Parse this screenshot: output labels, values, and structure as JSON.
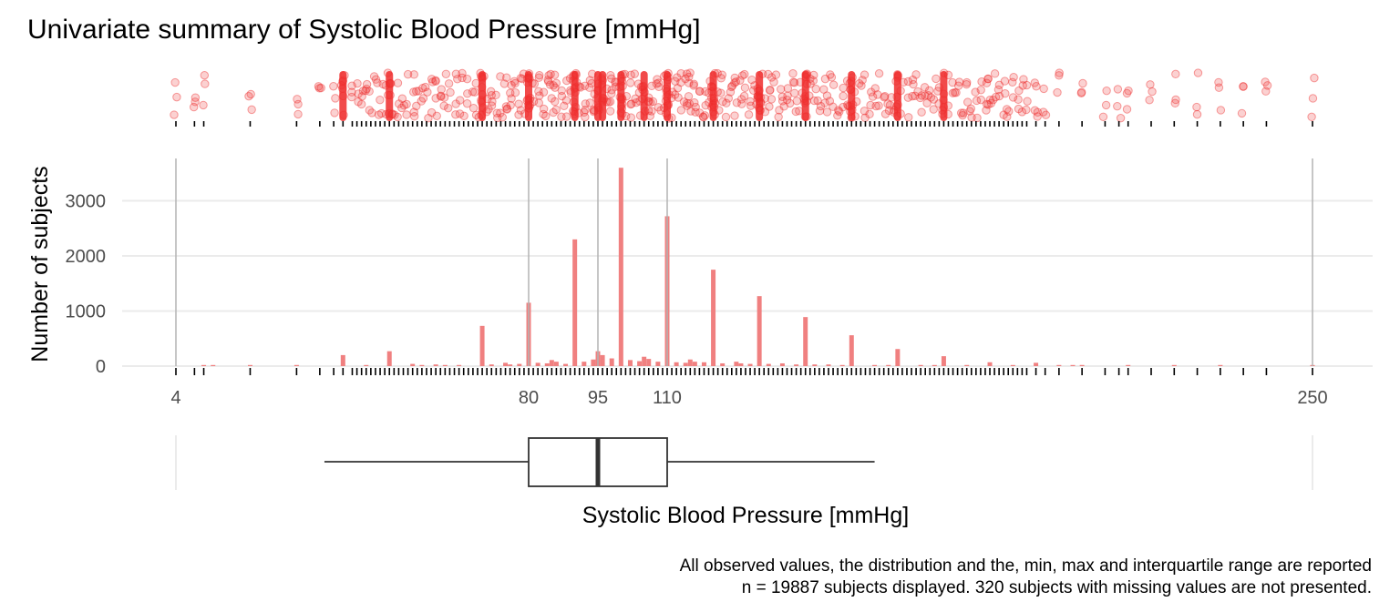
{
  "chart_data": {
    "type": "bar",
    "title": "Univariate summary of Systolic Blood Pressure [mmHg]",
    "xlabel": "Systolic Blood Pressure [mmHg]",
    "ylabel": "Number of subjects",
    "x_ticks": [
      4,
      80,
      95,
      110,
      250
    ],
    "x_tick_labels": [
      "4",
      "80",
      "95",
      "110",
      "250"
    ],
    "y_ticks": [
      0,
      1000,
      2000,
      3000
    ],
    "y_tick_labels": [
      "0",
      "1000",
      "2000",
      "3000"
    ],
    "xlim": [
      4,
      250
    ],
    "ylim": [
      0,
      3800
    ],
    "grid": true,
    "bar_color": "#F08080",
    "point_color": "#EE2C2C",
    "bars": [
      {
        "x": 10,
        "y": 10
      },
      {
        "x": 12,
        "y": 10
      },
      {
        "x": 20,
        "y": 10
      },
      {
        "x": 30,
        "y": 20
      },
      {
        "x": 40,
        "y": 200
      },
      {
        "x": 45,
        "y": 10
      },
      {
        "x": 50,
        "y": 270
      },
      {
        "x": 55,
        "y": 40
      },
      {
        "x": 57,
        "y": 20
      },
      {
        "x": 60,
        "y": 30
      },
      {
        "x": 62,
        "y": 20
      },
      {
        "x": 65,
        "y": 20
      },
      {
        "x": 70,
        "y": 730
      },
      {
        "x": 72,
        "y": 30
      },
      {
        "x": 75,
        "y": 60
      },
      {
        "x": 76,
        "y": 30
      },
      {
        "x": 78,
        "y": 40
      },
      {
        "x": 80,
        "y": 1150
      },
      {
        "x": 82,
        "y": 60
      },
      {
        "x": 84,
        "y": 50
      },
      {
        "x": 85,
        "y": 110
      },
      {
        "x": 86,
        "y": 80
      },
      {
        "x": 88,
        "y": 40
      },
      {
        "x": 90,
        "y": 2300
      },
      {
        "x": 92,
        "y": 80
      },
      {
        "x": 94,
        "y": 120
      },
      {
        "x": 95,
        "y": 270
      },
      {
        "x": 96,
        "y": 200
      },
      {
        "x": 98,
        "y": 140
      },
      {
        "x": 100,
        "y": 3600
      },
      {
        "x": 102,
        "y": 110
      },
      {
        "x": 104,
        "y": 90
      },
      {
        "x": 105,
        "y": 170
      },
      {
        "x": 106,
        "y": 130
      },
      {
        "x": 108,
        "y": 80
      },
      {
        "x": 110,
        "y": 2720
      },
      {
        "x": 112,
        "y": 70
      },
      {
        "x": 114,
        "y": 60
      },
      {
        "x": 115,
        "y": 120
      },
      {
        "x": 116,
        "y": 80
      },
      {
        "x": 118,
        "y": 70
      },
      {
        "x": 120,
        "y": 1750
      },
      {
        "x": 122,
        "y": 50
      },
      {
        "x": 125,
        "y": 80
      },
      {
        "x": 126,
        "y": 50
      },
      {
        "x": 128,
        "y": 40
      },
      {
        "x": 130,
        "y": 1270
      },
      {
        "x": 132,
        "y": 40
      },
      {
        "x": 135,
        "y": 50
      },
      {
        "x": 138,
        "y": 30
      },
      {
        "x": 140,
        "y": 890
      },
      {
        "x": 142,
        "y": 30
      },
      {
        "x": 145,
        "y": 30
      },
      {
        "x": 148,
        "y": 20
      },
      {
        "x": 150,
        "y": 560
      },
      {
        "x": 155,
        "y": 20
      },
      {
        "x": 158,
        "y": 20
      },
      {
        "x": 160,
        "y": 310
      },
      {
        "x": 165,
        "y": 20
      },
      {
        "x": 168,
        "y": 10
      },
      {
        "x": 170,
        "y": 180
      },
      {
        "x": 175,
        "y": 20
      },
      {
        "x": 180,
        "y": 70
      },
      {
        "x": 185,
        "y": 10
      },
      {
        "x": 190,
        "y": 60
      },
      {
        "x": 195,
        "y": 10
      },
      {
        "x": 198,
        "y": 10
      },
      {
        "x": 200,
        "y": 20
      },
      {
        "x": 210,
        "y": 10
      },
      {
        "x": 220,
        "y": 10
      },
      {
        "x": 230,
        "y": 10
      },
      {
        "x": 250,
        "y": 10
      }
    ],
    "boxplot": {
      "whisker_low": 36,
      "q1": 80,
      "median": 95,
      "q3": 110,
      "whisker_high": 155,
      "min": 4,
      "max": 250
    },
    "caption": [
      "All observed values, the distribution and the, min, max and interquartile range are reported",
      "n = 19887 subjects displayed. 320 subjects with missing values are not presented."
    ]
  }
}
